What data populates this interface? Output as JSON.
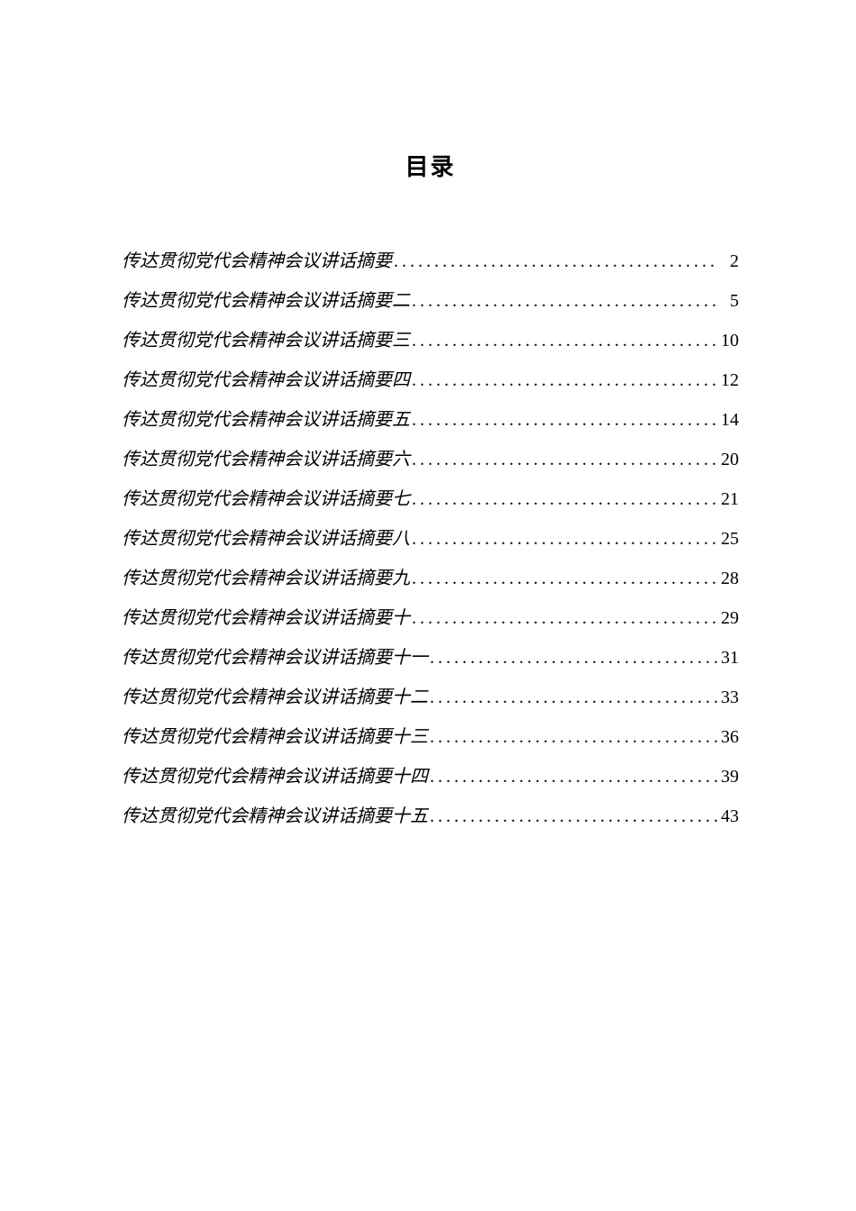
{
  "title": "目录",
  "entries": [
    {
      "label": "传达贯彻党代会精神会议讲话摘要",
      "page": "2"
    },
    {
      "label": "传达贯彻党代会精神会议讲话摘要二",
      "page": "5"
    },
    {
      "label": "传达贯彻党代会精神会议讲话摘要三",
      "page": "10"
    },
    {
      "label": "传达贯彻党代会精神会议讲话摘要四",
      "page": "12"
    },
    {
      "label": "传达贯彻党代会精神会议讲话摘要五",
      "page": "14"
    },
    {
      "label": "传达贯彻党代会精神会议讲话摘要六",
      "page": "20"
    },
    {
      "label": "传达贯彻党代会精神会议讲话摘要七",
      "page": "21"
    },
    {
      "label": "传达贯彻党代会精神会议讲话摘要八",
      "page": "25"
    },
    {
      "label": "传达贯彻党代会精神会议讲话摘要九",
      "page": "28"
    },
    {
      "label": "传达贯彻党代会精神会议讲话摘要十",
      "page": "29"
    },
    {
      "label": "传达贯彻党代会精神会议讲话摘要十一",
      "page": "31"
    },
    {
      "label": "传达贯彻党代会精神会议讲话摘要十二",
      "page": "33"
    },
    {
      "label": "传达贯彻党代会精神会议讲话摘要十三",
      "page": "36"
    },
    {
      "label": "传达贯彻党代会精神会议讲话摘要十四",
      "page": "39"
    },
    {
      "label": "传达贯彻党代会精神会议讲话摘要十五",
      "page": "43"
    }
  ],
  "styling": {
    "page_bg": "#ffffff",
    "text_color": "#000000",
    "title_fontsize": 26,
    "entry_fontsize": 20,
    "dot_char": "."
  }
}
